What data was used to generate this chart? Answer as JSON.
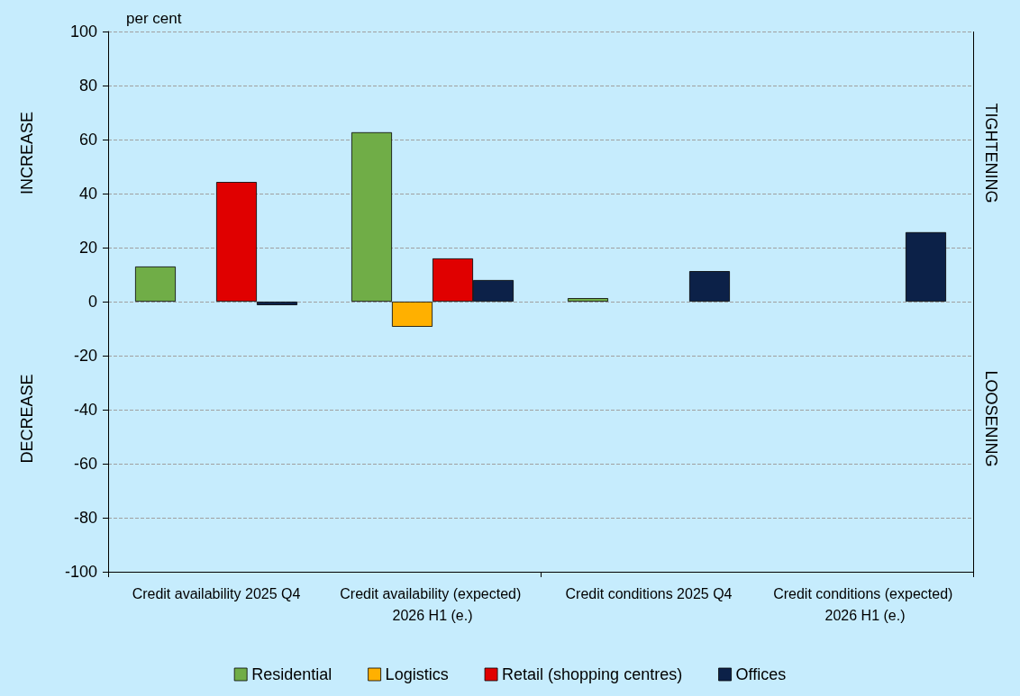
{
  "chart_data": {
    "type": "bar",
    "ylabel": "per cent",
    "categories": [
      "Credit availability 2025 Q4",
      "Credit availability (expected) 2026 H1 (e.)",
      "Credit conditions 2025 Q4",
      "Credit conditions (expected) 2026 H1 (e.)"
    ],
    "series": [
      {
        "name": "Residential",
        "color": "#70ad47",
        "values": [
          13,
          62.7,
          1.3,
          null
        ]
      },
      {
        "name": "Logistics",
        "color": "#ffb000",
        "values": [
          null,
          -9.3,
          null,
          null
        ]
      },
      {
        "name": "Retail (shopping centres)",
        "color": "#e00000",
        "values": [
          44.3,
          16,
          null,
          null
        ]
      },
      {
        "name": "Offices",
        "color": "#0c2148",
        "values": [
          -1.3,
          8,
          11.3,
          25.7
        ]
      }
    ],
    "ylim": [
      -100,
      100
    ],
    "yticks": [
      -100,
      -80,
      -60,
      -40,
      -20,
      0,
      20,
      40,
      60,
      80,
      100
    ],
    "annotations": [
      "INCREASE",
      "DECREASE",
      "TIGHTENING",
      "LOOSENING"
    ],
    "grid": "y",
    "legend": "bottom"
  }
}
